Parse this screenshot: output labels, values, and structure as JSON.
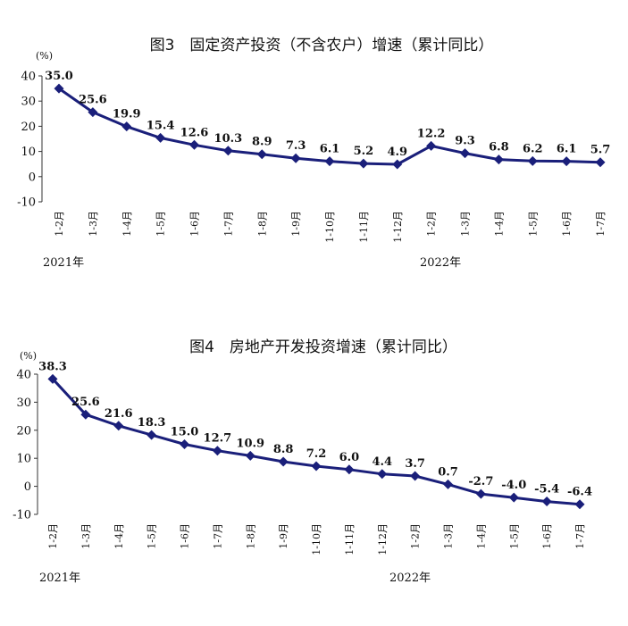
{
  "chart_data": [
    {
      "type": "line",
      "title": "图3　固定资产投资（不含农户）增速（累计同比）",
      "ylabel": "(%)",
      "ylim": [
        -10,
        40
      ],
      "yticks": [
        -10,
        0,
        10,
        20,
        30,
        40
      ],
      "categories": [
        "1-2月",
        "1-3月",
        "1-4月",
        "1-5月",
        "1-6月",
        "1-7月",
        "1-8月",
        "1-9月",
        "1-10月",
        "1-11月",
        "1-12月",
        "1-2月",
        "1-3月",
        "1-4月",
        "1-5月",
        "1-6月",
        "1-7月"
      ],
      "years": [
        {
          "label": "2021年",
          "index": 0
        },
        {
          "label": "2022年",
          "index": 11
        }
      ],
      "series": [
        {
          "values": [
            35.0,
            25.6,
            19.9,
            15.4,
            12.6,
            10.3,
            8.9,
            7.3,
            6.1,
            5.2,
            4.9,
            12.2,
            9.3,
            6.8,
            6.2,
            6.1,
            5.7
          ]
        }
      ],
      "data_labels": [
        "35.0",
        "25.6",
        "19.9",
        "15.4",
        "12.6",
        "10.3",
        "8.9",
        "7.3",
        "6.1",
        "5.2",
        "4.9",
        "12.2",
        "9.3",
        "6.8",
        "6.2",
        "6.1",
        "5.7"
      ],
      "color": "#1a1f7a",
      "grid": false
    },
    {
      "type": "line",
      "title": "图4　房地产开发投资增速（累计同比）",
      "ylabel": "(%)",
      "ylim": [
        -10,
        40
      ],
      "yticks": [
        -10,
        0,
        10,
        20,
        30,
        40
      ],
      "categories": [
        "1-2月",
        "1-3月",
        "1-4月",
        "1-5月",
        "1-6月",
        "1-7月",
        "1-8月",
        "1-9月",
        "1-10月",
        "1-11月",
        "1-12月",
        "1-2月",
        "1-3月",
        "1-4月",
        "1-5月",
        "1-6月",
        "1-7月"
      ],
      "years": [
        {
          "label": "2021年",
          "index": 0
        },
        {
          "label": "2022年",
          "index": 11
        }
      ],
      "series": [
        {
          "values": [
            38.3,
            25.6,
            21.6,
            18.3,
            15.0,
            12.7,
            10.9,
            8.8,
            7.2,
            6.0,
            4.4,
            3.7,
            0.7,
            -2.7,
            -4.0,
            -5.4,
            -6.4
          ]
        }
      ],
      "data_labels": [
        "38.3",
        "25.6",
        "21.6",
        "18.3",
        "15.0",
        "12.7",
        "10.9",
        "8.8",
        "7.2",
        "6.0",
        "4.4",
        "3.7",
        "0.7",
        "-2.7",
        "-4.0",
        "-5.4",
        "-6.4"
      ],
      "color": "#1a1f7a",
      "grid": false
    }
  ]
}
